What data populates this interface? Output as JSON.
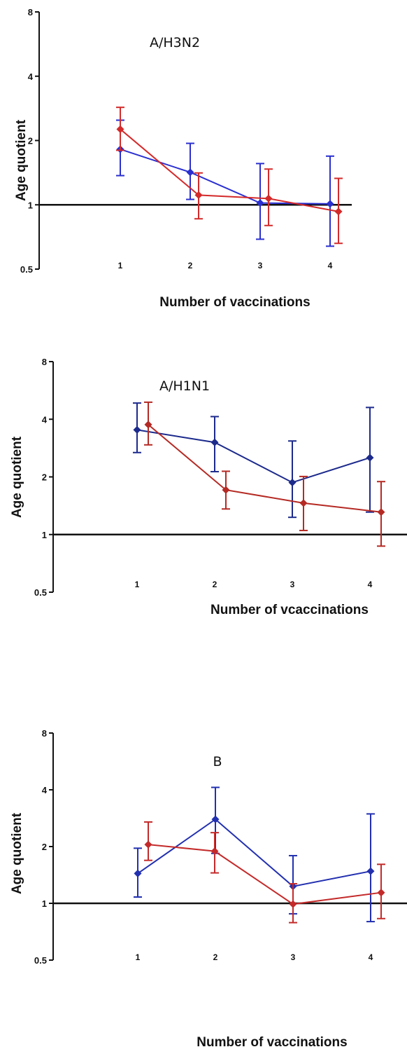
{
  "chart_data": [
    {
      "type": "line",
      "title": "A/H3N2",
      "xlabel": "Number of vaccinations",
      "ylabel": "Age quotient",
      "y_scale": "log2",
      "ylim": [
        0.5,
        8
      ],
      "yticks": [
        0.5,
        1,
        2,
        4,
        8
      ],
      "ytick_labels": [
        "0.5",
        "1",
        "2",
        "4",
        "8"
      ],
      "categories": [
        "1",
        "2",
        "3",
        "4"
      ],
      "reference_line": 1,
      "grid": false,
      "legend": "none",
      "series": [
        {
          "color": "#2a2fd0",
          "values": [
            1.82,
            1.42,
            1.02,
            1.01
          ],
          "lower": [
            1.37,
            1.06,
            0.69,
            0.64
          ],
          "upper": [
            2.49,
            1.94,
            1.56,
            1.69
          ]
        },
        {
          "color": "#d42a2a",
          "values": [
            2.26,
            1.11,
            1.07,
            0.93
          ],
          "lower": [
            1.8,
            0.86,
            0.8,
            0.66
          ],
          "upper": [
            2.86,
            1.41,
            1.47,
            1.33
          ]
        }
      ]
    },
    {
      "type": "line",
      "title": "A/H1N1",
      "xlabel": "Number of vcaccinations",
      "ylabel": "Age quotient",
      "y_scale": "log2",
      "ylim": [
        0.5,
        8
      ],
      "yticks": [
        0.5,
        1,
        2,
        4,
        8
      ],
      "ytick_labels": [
        "0.5",
        "1",
        "2",
        "4",
        "8"
      ],
      "categories": [
        "1",
        "2",
        "3",
        "4"
      ],
      "reference_line": 1,
      "grid": false,
      "legend": "none",
      "series": [
        {
          "color": "#1c2a8c",
          "values": [
            3.52,
            3.03,
            1.87,
            2.52
          ],
          "lower": [
            2.68,
            2.13,
            1.23,
            1.31
          ],
          "upper": [
            4.86,
            4.13,
            3.08,
            4.61
          ]
        },
        {
          "color": "#b52a24",
          "values": [
            3.75,
            1.71,
            1.46,
            1.31
          ],
          "lower": [
            2.94,
            1.36,
            1.05,
            0.87
          ],
          "upper": [
            4.91,
            2.14,
            2.01,
            1.89
          ]
        }
      ]
    },
    {
      "type": "line",
      "title": "B",
      "xlabel": "Number of vaccinations",
      "ylabel": "Age quotient",
      "y_scale": "log2",
      "ylim": [
        0.5,
        8
      ],
      "yticks": [
        0.5,
        1,
        2,
        4,
        8
      ],
      "ytick_labels": [
        "0.5",
        "1",
        "2",
        "4",
        "8"
      ],
      "categories": [
        "1",
        "2",
        "3",
        "4"
      ],
      "reference_line": 1,
      "grid": false,
      "legend": "none",
      "series": [
        {
          "color": "#2230b0",
          "values": [
            1.44,
            2.79,
            1.23,
            1.48
          ],
          "lower": [
            1.08,
            1.84,
            0.88,
            0.8
          ],
          "upper": [
            1.96,
            4.12,
            1.79,
            2.98
          ]
        },
        {
          "color": "#c42a2a",
          "values": [
            2.05,
            1.89,
            0.99,
            1.14
          ],
          "lower": [
            1.69,
            1.45,
            0.79,
            0.83
          ],
          "upper": [
            2.7,
            2.37,
            1.27,
            1.61
          ]
        }
      ]
    }
  ]
}
